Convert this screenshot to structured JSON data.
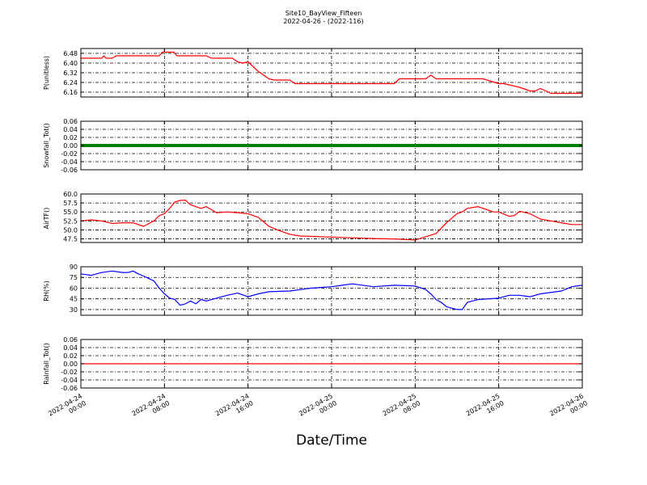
{
  "title": "Site10_BayView_Fifteen",
  "subtitle": "2022-04-26 - (2022-116)",
  "xlabel": "Date/Time",
  "x_ticks": [
    {
      "line1": "2022-04-24",
      "line2": "00:00"
    },
    {
      "line1": "2022-04-24",
      "line2": "08:00"
    },
    {
      "line1": "2022-04-24",
      "line2": "16:00"
    },
    {
      "line1": "2022-04-25",
      "line2": "00:00"
    },
    {
      "line1": "2022-04-25",
      "line2": "08:00"
    },
    {
      "line1": "2022-04-25",
      "line2": "16:00"
    },
    {
      "line1": "2022-04-26",
      "line2": "00:00"
    }
  ],
  "chart_data": [
    {
      "type": "line",
      "ylabel": "P(unitless)",
      "color": "#ff0000",
      "ylim": [
        6.12,
        6.52
      ],
      "yticks": [
        "6.48",
        "6.40",
        "6.32",
        "6.24",
        "6.16"
      ],
      "ytick_values": [
        6.48,
        6.4,
        6.32,
        6.24,
        6.16
      ],
      "x_hours": [
        0,
        2,
        2.2,
        2.4,
        3,
        3.4,
        3.6,
        4,
        7.5,
        7.8,
        8.9,
        9.2,
        12,
        12.5,
        14.5,
        15,
        15.5,
        16,
        16.5,
        17,
        18,
        18.5,
        19,
        20,
        20.5,
        22,
        30,
        30.5,
        32,
        33,
        33.5,
        34,
        38,
        38.5,
        40,
        40.5,
        42,
        43,
        43.5,
        44,
        45,
        48
      ],
      "y": [
        6.44,
        6.44,
        6.46,
        6.44,
        6.44,
        6.46,
        6.46,
        6.46,
        6.46,
        6.49,
        6.49,
        6.46,
        6.46,
        6.44,
        6.44,
        6.41,
        6.4,
        6.41,
        6.37,
        6.33,
        6.27,
        6.26,
        6.26,
        6.26,
        6.23,
        6.23,
        6.23,
        6.27,
        6.27,
        6.27,
        6.3,
        6.27,
        6.27,
        6.27,
        6.23,
        6.23,
        6.2,
        6.17,
        6.17,
        6.19,
        6.15,
        6.15
      ]
    },
    {
      "type": "line",
      "ylabel": "Snowfall_Tot()",
      "color": "#008000",
      "thick": true,
      "ylim": [
        -0.06,
        0.06
      ],
      "yticks": [
        "0.06",
        "0.04",
        "0.02",
        "0.00",
        "-0.02",
        "-0.04",
        "-0.06"
      ],
      "ytick_values": [
        0.06,
        0.04,
        0.02,
        0.0,
        -0.02,
        -0.04,
        -0.06
      ],
      "x_hours": [
        0,
        48
      ],
      "y": [
        0.0,
        0.0
      ]
    },
    {
      "type": "line",
      "ylabel": "AirTF()",
      "color": "#ff0000",
      "ylim": [
        46.5,
        60.0
      ],
      "yticks": [
        "60.0",
        "57.5",
        "55.0",
        "52.5",
        "50.0",
        "47.5"
      ],
      "ytick_values": [
        60.0,
        57.5,
        55.0,
        52.5,
        50.0,
        47.5
      ],
      "x_hours": [
        0,
        1,
        2,
        3,
        4,
        5,
        6,
        7,
        7.5,
        8,
        8.5,
        9,
        9.5,
        10,
        10.5,
        11,
        11.5,
        12,
        13,
        14,
        15,
        16,
        17,
        18,
        19,
        20,
        21,
        22,
        24,
        26,
        28,
        30,
        32,
        34,
        35,
        36,
        36.5,
        37,
        38,
        39,
        39.5,
        40,
        41,
        41.5,
        42,
        43,
        44,
        45,
        46,
        47,
        48
      ],
      "y": [
        52.5,
        52.8,
        52.5,
        51.8,
        52.0,
        52.0,
        51.0,
        52.5,
        54.0,
        54.5,
        56.0,
        57.8,
        58.2,
        58.3,
        57.0,
        56.5,
        56.0,
        56.5,
        54.8,
        55.0,
        54.8,
        54.5,
        53.5,
        51.0,
        49.8,
        48.8,
        48.3,
        48.2,
        48.0,
        47.8,
        47.6,
        47.5,
        47.2,
        49.0,
        52.0,
        54.5,
        55.0,
        56.0,
        56.5,
        55.5,
        55.0,
        55.0,
        53.8,
        54.0,
        55.2,
        54.5,
        53.0,
        52.5,
        52.0,
        51.5,
        51.5
      ]
    },
    {
      "type": "line",
      "ylabel": "RH(%)",
      "color": "#0000ff",
      "ylim": [
        22,
        90
      ],
      "yticks": [
        "90",
        "75",
        "60",
        "45",
        "30"
      ],
      "ytick_values": [
        90,
        75,
        60,
        45,
        30
      ],
      "x_hours": [
        0,
        1,
        2,
        3,
        4,
        4.5,
        5,
        5.5,
        6,
        7,
        7.5,
        8,
        8.5,
        9,
        9.5,
        10,
        10.5,
        11,
        11.5,
        12,
        13,
        14,
        15,
        16,
        17,
        18,
        20,
        22,
        24,
        25,
        26,
        28,
        30,
        32,
        33,
        33.5,
        34,
        34.5,
        35,
        35.5,
        36,
        36.5,
        37,
        38,
        40,
        41,
        42,
        43,
        44,
        46,
        47,
        48
      ],
      "y": [
        80,
        78,
        82,
        84,
        82,
        82,
        84,
        80,
        77,
        70,
        60,
        52,
        46,
        44,
        36,
        38,
        42,
        38,
        44,
        42,
        46,
        50,
        53,
        48,
        52,
        55,
        56,
        60,
        62,
        64,
        66,
        62,
        64,
        63,
        58,
        52,
        44,
        40,
        34,
        32,
        30,
        30,
        40,
        44,
        46,
        50,
        50,
        48,
        52,
        56,
        62,
        64
      ]
    },
    {
      "type": "line",
      "ylabel": "Rainfall_Tot()",
      "color": "#ff0000",
      "ylim": [
        -0.06,
        0.06
      ],
      "yticks": [
        "0.06",
        "0.04",
        "0.02",
        "0.00",
        "-0.02",
        "-0.04",
        "-0.06"
      ],
      "ytick_values": [
        0.06,
        0.04,
        0.02,
        0.0,
        -0.02,
        -0.04,
        -0.06
      ],
      "x_hours": [
        0,
        48
      ],
      "y": [
        0.0,
        0.0
      ]
    }
  ]
}
